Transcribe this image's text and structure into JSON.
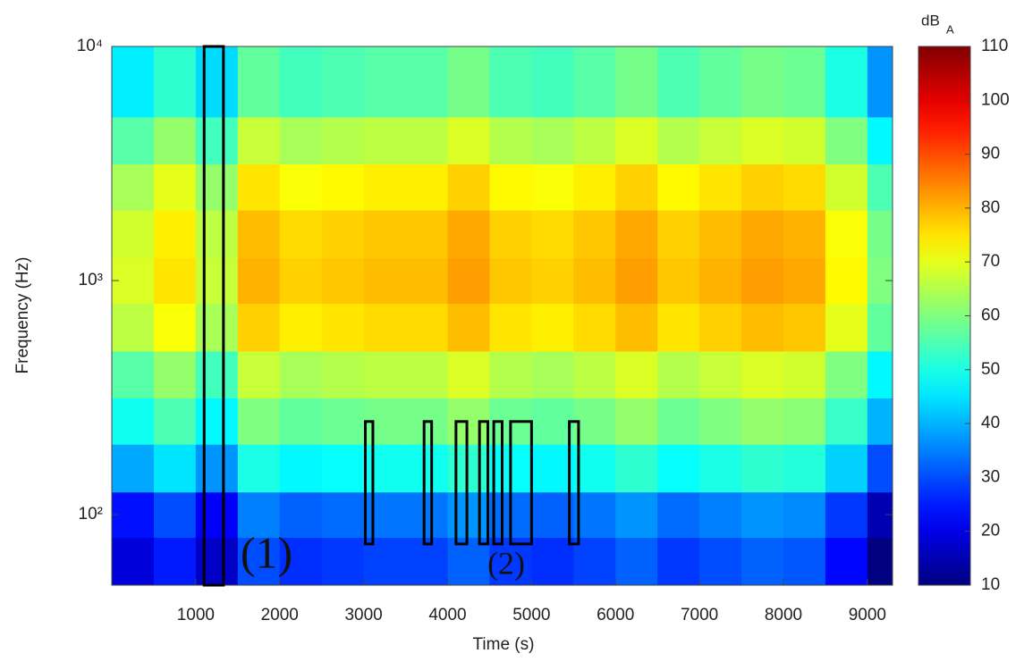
{
  "chart_data": {
    "type": "heatmap",
    "xlabel": "Time (s)",
    "ylabel": "Frequency (Hz)",
    "colorbar_label": "dB",
    "colorbar_label_sub": "A",
    "colormap": "jet",
    "ylog": true,
    "xlim": [
      0,
      9300
    ],
    "ylim": [
      50,
      10000
    ],
    "xticks": [
      1000,
      2000,
      3000,
      4000,
      5000,
      6000,
      7000,
      8000,
      9000
    ],
    "yticks": [
      {
        "value": 100,
        "label": "10²"
      },
      {
        "value": 1000,
        "label": "10³"
      },
      {
        "value": 10000,
        "label": "10⁴"
      }
    ],
    "clim": [
      10,
      110
    ],
    "cticks": [
      10,
      20,
      30,
      40,
      50,
      60,
      70,
      80,
      90,
      100,
      110
    ],
    "x_edges": [
      0,
      500,
      1000,
      1500,
      2000,
      2500,
      3000,
      3500,
      4000,
      4500,
      5000,
      5500,
      6000,
      6500,
      7000,
      7500,
      8000,
      8500,
      9000,
      9300
    ],
    "y_edges": [
      50,
      80,
      125,
      200,
      315,
      500,
      800,
      1250,
      2000,
      3150,
      5000,
      10000
    ],
    "values": [
      [
        19,
        25,
        17,
        30,
        27,
        28,
        29,
        29,
        32,
        28,
        27,
        29,
        32,
        28,
        30,
        32,
        31,
        23,
        10
      ],
      [
        24,
        30,
        22,
        35,
        32,
        33,
        34,
        34,
        37,
        33,
        32,
        34,
        37,
        33,
        35,
        37,
        36,
        28,
        15
      ],
      [
        39,
        45,
        37,
        50,
        47,
        48,
        49,
        49,
        52,
        48,
        47,
        49,
        52,
        48,
        50,
        52,
        51,
        43,
        30
      ],
      [
        49,
        55,
        47,
        60,
        57,
        58,
        59,
        59,
        62,
        58,
        57,
        59,
        62,
        58,
        60,
        62,
        61,
        53,
        40
      ],
      [
        56,
        62,
        54,
        67,
        64,
        65,
        66,
        66,
        69,
        65,
        64,
        66,
        69,
        65,
        67,
        69,
        68,
        60,
        47
      ],
      [
        66,
        72,
        64,
        77,
        74,
        75,
        76,
        76,
        79,
        75,
        74,
        76,
        79,
        75,
        77,
        79,
        78,
        70,
        57
      ],
      [
        69,
        75,
        67,
        80,
        77,
        78,
        79,
        79,
        82,
        78,
        77,
        79,
        82,
        78,
        80,
        82,
        81,
        73,
        60
      ],
      [
        68,
        74,
        66,
        79,
        76,
        77,
        78,
        78,
        81,
        77,
        76,
        78,
        81,
        77,
        79,
        81,
        80,
        72,
        59
      ],
      [
        64,
        70,
        62,
        75,
        72,
        73,
        74,
        74,
        77,
        73,
        72,
        74,
        77,
        73,
        75,
        77,
        76,
        68,
        55
      ],
      [
        56,
        62,
        54,
        67,
        64,
        65,
        66,
        66,
        69,
        65,
        64,
        66,
        69,
        65,
        67,
        69,
        68,
        60,
        47
      ],
      [
        46,
        52,
        44,
        57,
        54,
        55,
        56,
        56,
        59,
        55,
        54,
        56,
        59,
        55,
        57,
        59,
        58,
        50,
        37
      ]
    ],
    "annotations": {
      "boxes": [
        {
          "x": [
            1100,
            1330
          ],
          "y": [
            50,
            10000
          ]
        },
        {
          "x": [
            3020,
            3110
          ],
          "y": [
            75,
            250
          ]
        },
        {
          "x": [
            3720,
            3810
          ],
          "y": [
            75,
            250
          ]
        },
        {
          "x": [
            4100,
            4230
          ],
          "y": [
            75,
            250
          ]
        },
        {
          "x": [
            4380,
            4480
          ],
          "y": [
            75,
            250
          ]
        },
        {
          "x": [
            4550,
            4650
          ],
          "y": [
            75,
            250
          ]
        },
        {
          "x": [
            4750,
            5000
          ],
          "y": [
            75,
            250
          ]
        },
        {
          "x": [
            5450,
            5560
          ],
          "y": [
            75,
            250
          ]
        }
      ],
      "labels": [
        "(1)",
        "(2)"
      ]
    }
  }
}
